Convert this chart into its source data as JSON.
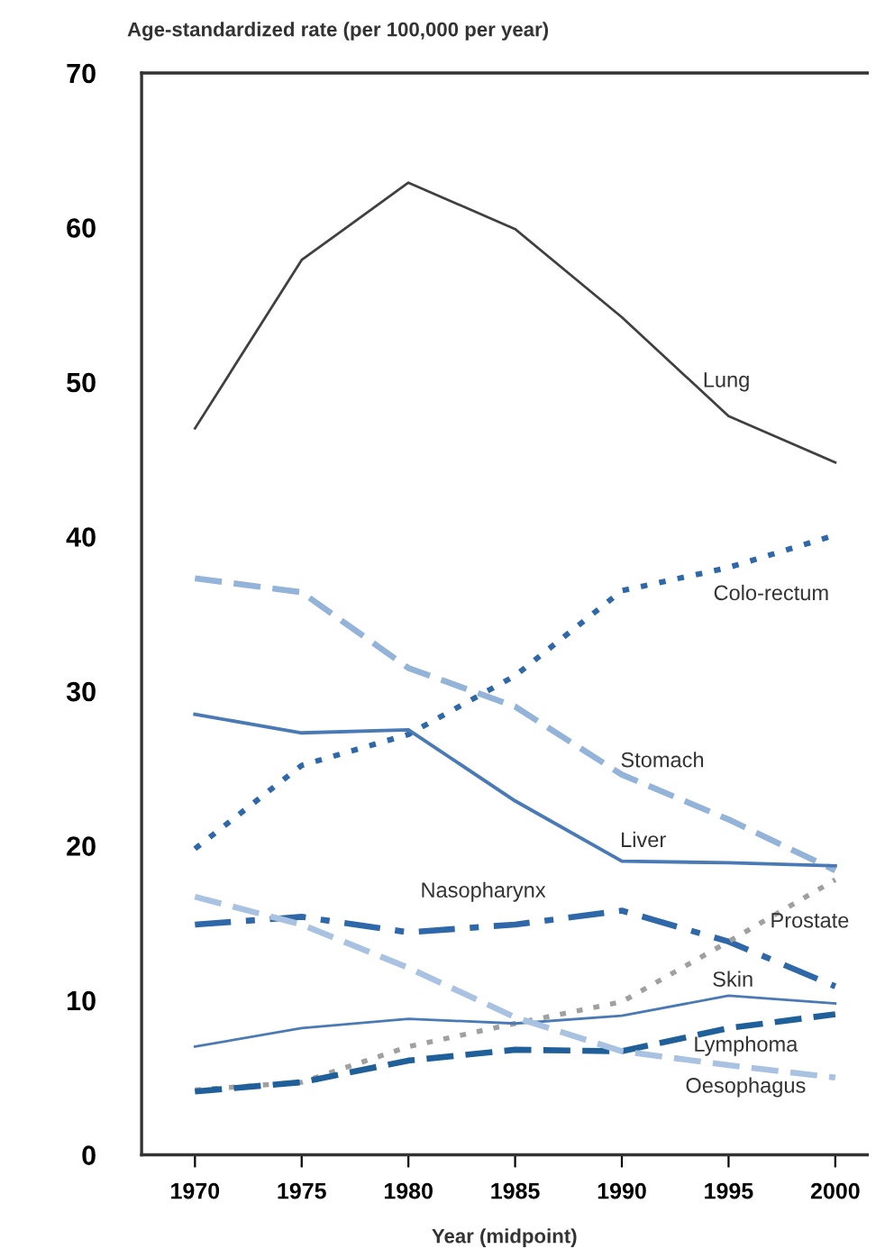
{
  "chart_data": {
    "type": "line",
    "ylabel": "Age-standardized rate (per 100,000 per year)",
    "xlabel": "Year (midpoint)",
    "x": [
      1970,
      1975,
      1980,
      1985,
      1990,
      1995,
      2000
    ],
    "xlim": [
      1967.5,
      2001.5
    ],
    "xticks": [
      1970,
      1975,
      1980,
      1985,
      1990,
      1995,
      2000
    ],
    "ylim": [
      0,
      70
    ],
    "yticks": [
      0,
      10,
      20,
      30,
      40,
      50,
      60,
      70
    ],
    "grid": false,
    "legend": false,
    "marker": "none",
    "series": [
      {
        "name": "Lung",
        "color": "#404040",
        "line_style": "solid",
        "values": [
          47.0,
          57.9,
          62.9,
          59.9,
          54.2,
          47.8,
          44.8
        ]
      },
      {
        "name": "Colo-rectum",
        "color": "#2e68a8",
        "line_style": "dotted",
        "values": [
          19.8,
          25.2,
          27.2,
          31.0,
          36.5,
          38.0,
          40.1
        ]
      },
      {
        "name": "Stomach",
        "color": "#94b3d9",
        "line_style": "dashed",
        "values": [
          37.3,
          36.4,
          31.5,
          29.0,
          24.6,
          21.7,
          18.4
        ]
      },
      {
        "name": "Liver",
        "color": "#4a7ab5",
        "line_style": "solid",
        "values": [
          28.5,
          27.3,
          27.5,
          22.9,
          19.0,
          18.9,
          18.7
        ]
      },
      {
        "name": "Nasopharynx",
        "color": "#2e68a8",
        "line_style": "dashdot",
        "values": [
          14.9,
          15.4,
          14.4,
          14.9,
          15.8,
          13.8,
          10.9
        ]
      },
      {
        "name": "Prostate",
        "color": "#a0a0a0",
        "line_style": "dotted",
        "values": [
          4.2,
          4.7,
          7.0,
          8.5,
          9.9,
          13.8,
          17.8
        ]
      },
      {
        "name": "Skin",
        "color": "#4a7ab5",
        "line_style": "solid",
        "values": [
          7.0,
          8.2,
          8.8,
          8.5,
          9.0,
          10.3,
          9.8
        ]
      },
      {
        "name": "Lymphoma",
        "color": "#1f5f9a",
        "line_style": "dashed",
        "values": [
          4.1,
          4.7,
          6.1,
          6.8,
          6.7,
          8.2,
          9.1
        ]
      },
      {
        "name": "Oesophagus",
        "color": "#a9c2e2",
        "line_style": "dashed",
        "values": [
          16.7,
          14.9,
          12.1,
          8.9,
          6.7,
          5.8,
          5.0
        ]
      }
    ]
  }
}
